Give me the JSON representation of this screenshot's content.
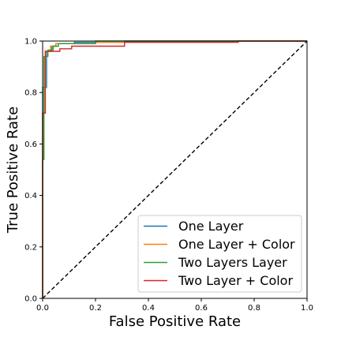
{
  "chart_data": {
    "type": "line",
    "title": "",
    "xlabel": "False Positive Rate",
    "ylabel": "True Positive Rate",
    "xlim": [
      0.0,
      1.0
    ],
    "ylim": [
      0.0,
      1.0
    ],
    "xticks": [
      "0.0",
      "0.2",
      "0.4",
      "0.6",
      "0.8",
      "1.0"
    ],
    "yticks": [
      "0.0",
      "0.2",
      "0.4",
      "0.6",
      "0.8",
      "1.0"
    ],
    "grid": false,
    "legend_position": "bottom-right",
    "series": [
      {
        "name": "One Layer",
        "color": "#1f77b4",
        "style": "step",
        "x": [
          0.0,
          0.0,
          0.015,
          0.015,
          0.035,
          0.035,
          0.05,
          0.05,
          0.12,
          0.12,
          0.31,
          0.31,
          1.0
        ],
        "y": [
          0.0,
          0.82,
          0.82,
          0.96,
          0.96,
          0.98,
          0.98,
          0.99,
          0.99,
          0.995,
          0.995,
          1.0,
          1.0
        ]
      },
      {
        "name": "One Layer + Color",
        "color": "#ff7f0e",
        "style": "step",
        "x": [
          0.0,
          0.0,
          0.01,
          0.01,
          0.03,
          0.03,
          0.05,
          0.05,
          0.2,
          0.2,
          0.72,
          0.72,
          1.0
        ],
        "y": [
          0.0,
          0.72,
          0.72,
          0.96,
          0.96,
          0.98,
          0.98,
          0.99,
          0.99,
          0.995,
          0.995,
          1.0,
          1.0
        ]
      },
      {
        "name": "Two Layers Layer",
        "color": "#2ca02c",
        "style": "step",
        "x": [
          0.0,
          0.0,
          0.005,
          0.005,
          0.02,
          0.02,
          0.04,
          0.04,
          0.06,
          0.06,
          0.2,
          0.2,
          1.0
        ],
        "y": [
          0.0,
          0.54,
          0.54,
          0.94,
          0.94,
          0.965,
          0.965,
          0.98,
          0.98,
          0.99,
          0.99,
          1.0,
          1.0
        ]
      },
      {
        "name": "Two Layer + Color",
        "color": "#d62728",
        "style": "step",
        "x": [
          0.0,
          0.0,
          0.01,
          0.01,
          0.065,
          0.065,
          0.11,
          0.11,
          0.31,
          0.31,
          0.74,
          0.74,
          1.0
        ],
        "y": [
          0.0,
          0.72,
          0.72,
          0.96,
          0.96,
          0.97,
          0.97,
          0.98,
          0.98,
          0.995,
          0.995,
          1.0,
          1.0
        ]
      }
    ],
    "reference_line": {
      "style": "dashed",
      "color": "#000000",
      "x": [
        0.0,
        1.0
      ],
      "y": [
        0.0,
        1.0
      ]
    }
  }
}
